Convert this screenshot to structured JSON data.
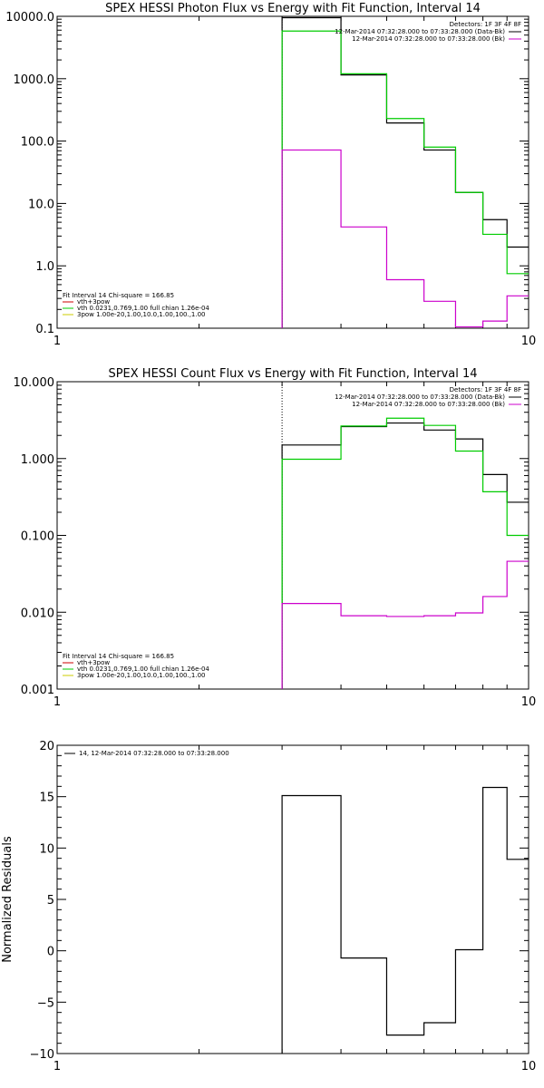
{
  "chart_data": [
    {
      "type": "line",
      "step": true,
      "title": "SPEX HESSI Photon Flux vs Energy with Fit Function, Interval 14",
      "xscale": "log",
      "yscale": "log",
      "xlim": [
        1,
        10
      ],
      "ylim": [
        0.1,
        10000
      ],
      "xticks": [
        1,
        10
      ],
      "xtick_labels": [
        "1",
        "10"
      ],
      "yticks": [
        0.1,
        1,
        10,
        100,
        1000,
        10000
      ],
      "ytick_labels": [
        "0.1",
        "1.0",
        "10.0",
        "100.0",
        "1000.0",
        "10000.0"
      ],
      "x_edges": [
        3,
        4,
        5,
        6,
        7,
        8,
        9,
        10
      ],
      "vline_x": 3,
      "legend_top": {
        "header": "Detectors: 1F 3F 4F 8F",
        "entries": [
          {
            "text": "12-Mar-2014 07:32:28.000 to 07:33:28.000 (Data-Bk)",
            "color": "#000000"
          },
          {
            "text": "12-Mar-2014 07:32:28.000 to 07:33:28.000 (Bk)",
            "color": "#cc00cc"
          }
        ]
      },
      "legend_bottom": {
        "header": "Fit Interval 14   Chi-square = 166.85",
        "entries": [
          {
            "text": "vth+3pow",
            "color": "#cc0000"
          },
          {
            "text": "vth 0.0231,0.769,1.00  full chian 1.26e-04",
            "color": "#00cc00"
          },
          {
            "text": "3pow 1.00e-20,1.00,10.0,1.00,100.,1.00",
            "color": "#cccc00"
          }
        ]
      },
      "series": [
        {
          "color": "#000000",
          "values": [
            9500,
            1150,
            195,
            72,
            15,
            5.5,
            2.0
          ]
        },
        {
          "color": "#00cc00",
          "values": [
            5800,
            1200,
            230,
            80,
            15,
            3.2,
            0.75
          ]
        },
        {
          "color": "#cc00cc",
          "values": [
            72,
            4.2,
            0.6,
            0.27,
            0.105,
            0.13,
            0.33
          ]
        }
      ]
    },
    {
      "type": "line",
      "step": true,
      "title": "SPEX HESSI Count Flux vs Energy with Fit Function, Interval 14",
      "xscale": "log",
      "yscale": "log",
      "xlim": [
        1,
        10
      ],
      "ylim": [
        0.001,
        10
      ],
      "xticks": [
        1,
        10
      ],
      "xtick_labels": [
        "1",
        "10"
      ],
      "yticks": [
        0.001,
        0.01,
        0.1,
        1,
        10
      ],
      "ytick_labels": [
        "0.001",
        "0.010",
        "0.100",
        "1.000",
        "10.000"
      ],
      "x_edges": [
        3,
        4,
        5,
        6,
        7,
        8,
        9,
        10
      ],
      "vline_x": 3,
      "legend_top": {
        "header": "Detectors: 1F 3F 4F 8F",
        "entries": [
          {
            "text": "12-Mar-2014 07:32:28.000 to 07:33:28.000 (Data-Bk)",
            "color": "#000000"
          },
          {
            "text": "12-Mar-2014 07:32:28.000 to 07:33:28.000 (Bk)",
            "color": "#cc00cc"
          }
        ]
      },
      "legend_bottom": {
        "header": "Fit Interval 14   Chi-square = 166.85",
        "entries": [
          {
            "text": "vth+3pow",
            "color": "#cc0000"
          },
          {
            "text": "vth 0.0231,0.769,1.00  full chian 1.26e-04",
            "color": "#00cc00"
          },
          {
            "text": "3pow 1.00e-20,1.00,10.0,1.00,100.,1.00",
            "color": "#cccc00"
          }
        ]
      },
      "series": [
        {
          "color": "#000000",
          "values": [
            1.5,
            2.6,
            2.9,
            2.35,
            1.8,
            0.62,
            0.27
          ]
        },
        {
          "color": "#00cc00",
          "values": [
            0.98,
            2.65,
            3.35,
            2.7,
            1.25,
            0.37,
            0.1
          ]
        },
        {
          "color": "#cc00cc",
          "values": [
            0.013,
            0.009,
            0.0088,
            0.009,
            0.0098,
            0.016,
            0.046
          ]
        }
      ]
    },
    {
      "type": "line",
      "step": true,
      "title": "",
      "ylabel": "Normalized Residuals",
      "xscale": "log",
      "yscale": "linear",
      "xlim": [
        1,
        10
      ],
      "ylim": [
        -10,
        20
      ],
      "xticks": [
        1,
        10
      ],
      "xtick_labels": [
        "1",
        "10"
      ],
      "yticks": [
        -10,
        -5,
        0,
        5,
        10,
        15,
        20
      ],
      "ytick_labels": [
        "−10",
        "−5",
        "0",
        "5",
        "10",
        "15",
        "20"
      ],
      "x_edges": [
        3,
        4,
        5,
        6,
        7,
        8,
        9,
        10
      ],
      "legend_top": {
        "header": "",
        "entries": [
          {
            "text": "14, 12-Mar-2014 07:32:28.000 to 07:33:28.000",
            "color": "#000000"
          }
        ]
      },
      "series": [
        {
          "color": "#000000",
          "values": [
            15.1,
            -0.7,
            -8.2,
            -7.0,
            0.1,
            15.9,
            8.9
          ]
        }
      ]
    }
  ]
}
